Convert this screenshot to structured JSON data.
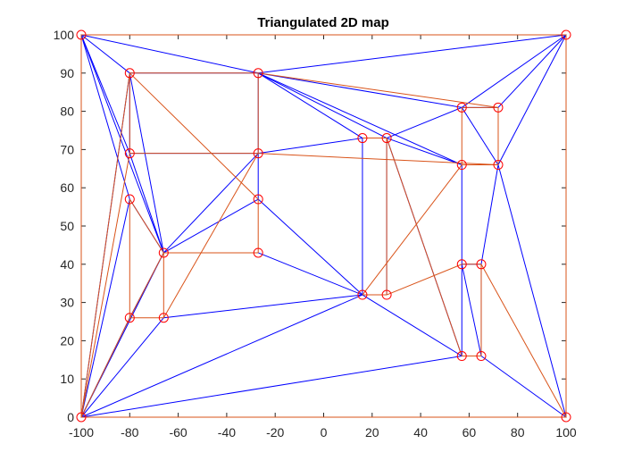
{
  "chart_data": {
    "type": "scatter",
    "title": "Triangulated 2D map",
    "xlabel": "",
    "ylabel": "",
    "xlim": [
      -100,
      100
    ],
    "ylim": [
      0,
      100
    ],
    "xticks": [
      -100,
      -80,
      -60,
      -40,
      -20,
      0,
      20,
      40,
      60,
      80,
      100
    ],
    "yticks": [
      0,
      10,
      20,
      30,
      40,
      50,
      60,
      70,
      80,
      90,
      100
    ],
    "grid": false,
    "box": true,
    "colors": {
      "axis": "#262626",
      "triangulation": "#0000ff",
      "map_edges": "#d95319",
      "nodes": "#ff0000",
      "background": "#ffffff"
    },
    "nodes": [
      {
        "x": -100,
        "y": 100
      },
      {
        "x": 100,
        "y": 100
      },
      {
        "x": -100,
        "y": 0
      },
      {
        "x": 100,
        "y": 0
      },
      {
        "x": -80,
        "y": 90
      },
      {
        "x": -27,
        "y": 90
      },
      {
        "x": -80,
        "y": 69
      },
      {
        "x": -27,
        "y": 69
      },
      {
        "x": -80,
        "y": 57
      },
      {
        "x": -27,
        "y": 57
      },
      {
        "x": -66,
        "y": 43
      },
      {
        "x": -27,
        "y": 43
      },
      {
        "x": -80,
        "y": 26
      },
      {
        "x": -66,
        "y": 26
      },
      {
        "x": 16,
        "y": 73
      },
      {
        "x": 26,
        "y": 73
      },
      {
        "x": 16,
        "y": 32
      },
      {
        "x": 26,
        "y": 32
      },
      {
        "x": 57,
        "y": 81
      },
      {
        "x": 72,
        "y": 81
      },
      {
        "x": 57,
        "y": 66
      },
      {
        "x": 72,
        "y": 66
      },
      {
        "x": 57,
        "y": 40
      },
      {
        "x": 65,
        "y": 40
      },
      {
        "x": 57,
        "y": 16
      },
      {
        "x": 65,
        "y": 16
      }
    ],
    "map_edges": [
      [
        0,
        1
      ],
      [
        1,
        3
      ],
      [
        3,
        2
      ],
      [
        2,
        0
      ],
      [
        4,
        5
      ],
      [
        5,
        7
      ],
      [
        7,
        6
      ],
      [
        6,
        4
      ],
      [
        8,
        10
      ],
      [
        10,
        12
      ],
      [
        12,
        8
      ],
      [
        9,
        11
      ],
      [
        11,
        10
      ],
      [
        10,
        13
      ],
      [
        13,
        12
      ],
      [
        14,
        15
      ],
      [
        15,
        17
      ],
      [
        17,
        16
      ],
      [
        18,
        19
      ],
      [
        19,
        21
      ],
      [
        21,
        20
      ],
      [
        20,
        18
      ],
      [
        22,
        23
      ],
      [
        23,
        25
      ],
      [
        25,
        24
      ],
      [
        2,
        4
      ],
      [
        2,
        6
      ],
      [
        2,
        12
      ],
      [
        4,
        9
      ],
      [
        7,
        13
      ],
      [
        7,
        21
      ],
      [
        5,
        19
      ],
      [
        16,
        20
      ],
      [
        17,
        22
      ],
      [
        15,
        24
      ],
      [
        23,
        3
      ]
    ],
    "triangulation_edges": [
      [
        0,
        1
      ],
      [
        1,
        3
      ],
      [
        3,
        2
      ],
      [
        2,
        0
      ],
      [
        0,
        4
      ],
      [
        0,
        5
      ],
      [
        0,
        6
      ],
      [
        0,
        8
      ],
      [
        0,
        10
      ],
      [
        4,
        5
      ],
      [
        4,
        6
      ],
      [
        4,
        2
      ],
      [
        4,
        10
      ],
      [
        5,
        7
      ],
      [
        5,
        1
      ],
      [
        5,
        14
      ],
      [
        5,
        15
      ],
      [
        5,
        18
      ],
      [
        5,
        20
      ],
      [
        6,
        7
      ],
      [
        6,
        10
      ],
      [
        7,
        10
      ],
      [
        7,
        9
      ],
      [
        7,
        14
      ],
      [
        8,
        10
      ],
      [
        8,
        2
      ],
      [
        9,
        16
      ],
      [
        9,
        10
      ],
      [
        10,
        11
      ],
      [
        10,
        2
      ],
      [
        11,
        16
      ],
      [
        12,
        2
      ],
      [
        12,
        10
      ],
      [
        13,
        2
      ],
      [
        13,
        16
      ],
      [
        14,
        15
      ],
      [
        14,
        16
      ],
      [
        15,
        17
      ],
      [
        15,
        18
      ],
      [
        15,
        20
      ],
      [
        15,
        24
      ],
      [
        16,
        17
      ],
      [
        16,
        2
      ],
      [
        16,
        24
      ],
      [
        18,
        19
      ],
      [
        18,
        1
      ],
      [
        18,
        21
      ],
      [
        19,
        1
      ],
      [
        20,
        22
      ],
      [
        20,
        21
      ],
      [
        21,
        23
      ],
      [
        21,
        1
      ],
      [
        21,
        3
      ],
      [
        22,
        23
      ],
      [
        22,
        24
      ],
      [
        22,
        25
      ],
      [
        23,
        25
      ],
      [
        24,
        25
      ],
      [
        24,
        2
      ],
      [
        25,
        3
      ],
      [
        1,
        3
      ]
    ]
  }
}
